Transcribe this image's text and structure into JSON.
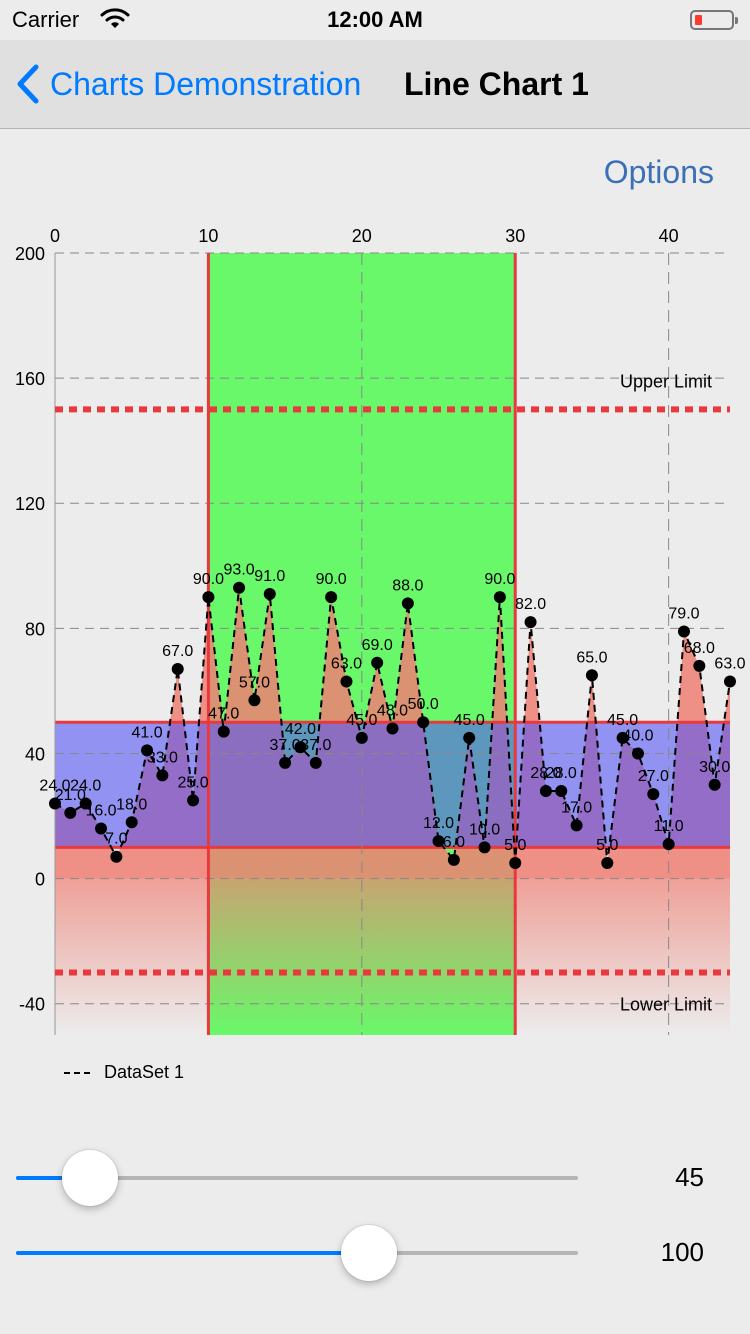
{
  "status_bar": {
    "carrier": "Carrier",
    "time": "12:00 AM",
    "battery_level": 0.15
  },
  "nav": {
    "back_label": "Charts Demonstration",
    "title": "Line Chart 1"
  },
  "options_label": "Options",
  "chart_data": {
    "type": "line",
    "x_ticks": [
      "0",
      "10",
      "20",
      "30",
      "40"
    ],
    "y_ticks": [
      "200",
      "160",
      "120",
      "80",
      "40",
      "0",
      "-40"
    ],
    "xlim": [
      0,
      44
    ],
    "ylim": [
      -50,
      200
    ],
    "grid": true,
    "series": [
      {
        "name": "DataSet 1",
        "x": [
          0,
          1,
          2,
          3,
          4,
          5,
          6,
          7,
          8,
          9,
          10,
          11,
          12,
          13,
          14,
          15,
          16,
          17,
          18,
          19,
          20,
          21,
          22,
          23,
          24,
          25,
          26,
          27,
          28,
          29,
          30,
          31,
          32,
          33,
          34,
          35,
          36,
          37,
          38,
          39,
          40,
          41,
          42,
          43,
          44
        ],
        "values": [
          24,
          21,
          24,
          16,
          7,
          18,
          41,
          33,
          67,
          25,
          90,
          47,
          93,
          57,
          91,
          37,
          42,
          37,
          90,
          63,
          45,
          69,
          48,
          88,
          50,
          12,
          6,
          45,
          10,
          90,
          5,
          82,
          28,
          28,
          17,
          65,
          5,
          45,
          40,
          27,
          11,
          79,
          68,
          30,
          63
        ],
        "labels": [
          "24.0",
          "21.0",
          "24.0",
          "16.0",
          "7.0",
          "18.0",
          "41.0",
          "33.0",
          "67.0",
          "25.0",
          "90.0",
          "47.0",
          "93.0",
          "57.0",
          "91.0",
          "37.0",
          "42.0",
          "37.0",
          "90.0",
          "63.0",
          "45.0",
          "69.0",
          "48.0",
          "88.0",
          "50.0",
          "12.0",
          "6.0",
          "45.0",
          "10.0",
          "90.0",
          "5.0",
          "82.0",
          "28.0",
          "28.0",
          "17.0",
          "65.0",
          "5.0",
          "45.0",
          "40.0",
          "27.0",
          "11.0",
          "79.0",
          "68.0",
          "30.0",
          "63.0"
        ],
        "line_style": "dashed",
        "color": "#000000"
      }
    ],
    "limit_lines": [
      {
        "label": "Upper Limit",
        "value": 150,
        "color": "#e8393f"
      },
      {
        "label": "Lower Limit",
        "value": -30,
        "color": "#e8393f"
      }
    ],
    "highlight_x_range": [
      10,
      30
    ],
    "highlight_color": "#69f869",
    "band_y_range": [
      10,
      50
    ],
    "band_color": "#5556f5",
    "fill_color": "#f08074"
  },
  "legend": {
    "label": "DataSet 1"
  },
  "sliders": [
    {
      "value": 45,
      "display": "45",
      "fraction": 0.07
    },
    {
      "value": 100,
      "display": "100",
      "fraction": 0.65
    }
  ]
}
